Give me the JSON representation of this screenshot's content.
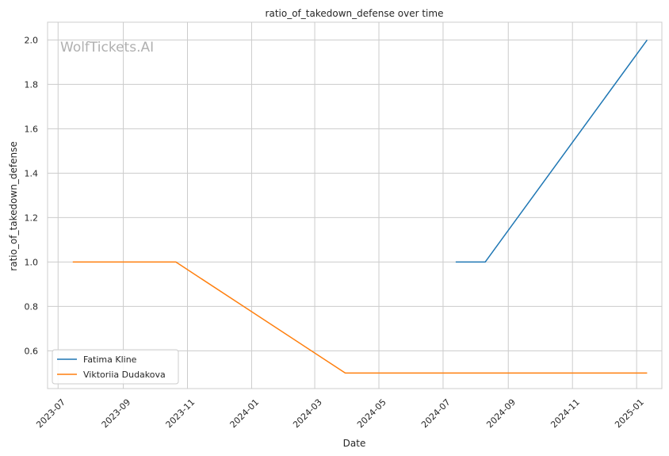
{
  "chart_data": {
    "type": "line",
    "title": "ratio_of_takedown_defense over time",
    "xlabel": "Date",
    "ylabel": "ratio_of_takedown_defense",
    "watermark": "WolfTickets.AI",
    "xlim": [
      "2023-06-21",
      "2025-01-25"
    ],
    "ylim": [
      0.43,
      2.08
    ],
    "x_ticks": [
      "2023-07",
      "2023-09",
      "2023-11",
      "2024-01",
      "2024-03",
      "2024-05",
      "2024-07",
      "2024-09",
      "2024-11",
      "2025-01"
    ],
    "y_ticks": [
      "0.6",
      "0.8",
      "1.0",
      "1.2",
      "1.4",
      "1.6",
      "1.8",
      "2.0"
    ],
    "grid": true,
    "legend_position": "lower-left",
    "series": [
      {
        "name": "Fatima Kline",
        "color": "#1f77b4",
        "points": [
          {
            "x": "2024-07-13",
            "y": 1.0
          },
          {
            "x": "2024-08-10",
            "y": 1.0
          },
          {
            "x": "2025-01-11",
            "y": 2.0
          }
        ]
      },
      {
        "name": "Viktoriia Dudakova",
        "color": "#ff7f0e",
        "points": [
          {
            "x": "2023-07-15",
            "y": 1.0
          },
          {
            "x": "2023-10-21",
            "y": 1.0
          },
          {
            "x": "2024-03-30",
            "y": 0.5
          },
          {
            "x": "2025-01-11",
            "y": 0.5
          }
        ]
      }
    ]
  }
}
